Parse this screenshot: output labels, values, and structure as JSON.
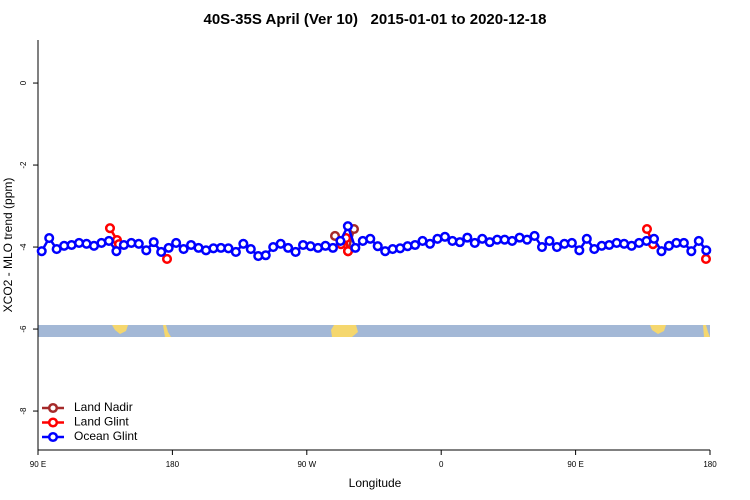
{
  "chart_data": {
    "type": "line",
    "title": "40S-35S April (Ver 10)   2015-01-01 to 2020-12-18",
    "x_label": "Longitude",
    "y_label": "XCO2 - MLO trend (ppm)",
    "xlim": [
      90,
      540
    ],
    "ylim": [
      -8.95,
      1.05
    ],
    "xticks": [
      {
        "value": 90,
        "label": "90 E"
      },
      {
        "value": 180,
        "label": "180"
      },
      {
        "value": 270,
        "label": "90 W"
      },
      {
        "value": 360,
        "label": "0"
      },
      {
        "value": 450,
        "label": "90 E"
      },
      {
        "value": 540,
        "label": "180"
      }
    ],
    "yticks": [
      0,
      -2,
      -4,
      -6,
      -8
    ],
    "legend": "bottom-left",
    "series": [
      {
        "name": "Land Nadir",
        "color": "#a52a2a",
        "x": [
          288.9,
          297.6,
          301.6
        ],
        "values": [
          -3.73,
          -4.1,
          -3.56
        ]
      },
      {
        "name": "Land Glint",
        "color": "#ff0000",
        "x": [
          138.2,
          142.9,
          144.2,
          null,
          176.4,
          null,
          292.9,
          296.3,
          297.6,
          null,
          497.8,
          501.8,
          null,
          537.3
        ],
        "values": [
          -3.54,
          -3.83,
          -3.93,
          null,
          -4.29,
          null,
          -3.93,
          -3.78,
          -4.1,
          null,
          -3.56,
          -3.93,
          null,
          -4.29
        ]
      },
      {
        "name": "Ocean Glint",
        "color": "#0000ff",
        "x": [
          92.5,
          97.5,
          102.5,
          107.5,
          112.5,
          117.5,
          122.5,
          127.5,
          132.5,
          137.5,
          142.5,
          147.5,
          152.5,
          157.5,
          162.5,
          167.5,
          172.5,
          177.5,
          182.5,
          187.5,
          192.5,
          197.5,
          202.5,
          207.5,
          212.5,
          217.5,
          222.5,
          227.5,
          232.5,
          237.5,
          242.5,
          247.5,
          252.5,
          257.5,
          262.5,
          267.5,
          272.5,
          277.5,
          282.5,
          287.5,
          292.5,
          297.5,
          302.5,
          307.5,
          312.5,
          317.5,
          322.5,
          327.5,
          332.5,
          337.5,
          342.5,
          347.5,
          352.5,
          357.5,
          362.5,
          367.5,
          372.5,
          377.5,
          382.5,
          387.5,
          392.5,
          397.5,
          402.5,
          407.5,
          412.5,
          417.5,
          422.5,
          427.5,
          432.5,
          437.5,
          442.5,
          447.5,
          452.5,
          457.5,
          462.5,
          467.5,
          472.5,
          477.5,
          482.5,
          487.5,
          492.5,
          497.5,
          502.5,
          507.5,
          512.5,
          517.5,
          522.5,
          527.5,
          532.5,
          537.5
        ],
        "values": [
          -4.1,
          -3.78,
          -4.05,
          -3.97,
          -3.95,
          -3.9,
          -3.92,
          -3.97,
          -3.9,
          -3.85,
          -4.1,
          -3.95,
          -3.9,
          -3.92,
          -4.08,
          -3.88,
          -4.12,
          -4.02,
          -3.9,
          -4.05,
          -3.95,
          -4.02,
          -4.08,
          -4.03,
          -4.02,
          -4.03,
          -4.12,
          -3.92,
          -4.05,
          -4.22,
          -4.2,
          -4.0,
          -3.92,
          -4.02,
          -4.12,
          -3.95,
          -3.98,
          -4.02,
          -3.97,
          -4.02,
          -3.85,
          -3.49,
          -4.02,
          -3.85,
          -3.8,
          -3.98,
          -4.1,
          -4.05,
          -4.03,
          -3.98,
          -3.95,
          -3.85,
          -3.92,
          -3.8,
          -3.75,
          -3.85,
          -3.88,
          -3.77,
          -3.9,
          -3.8,
          -3.88,
          -3.82,
          -3.82,
          -3.85,
          -3.77,
          -3.82,
          -3.73,
          -4.0,
          -3.85,
          -4.0,
          -3.92,
          -3.9,
          -4.08,
          -3.8,
          -4.05,
          -3.97,
          -3.95,
          -3.9,
          -3.92,
          -3.97,
          -3.9,
          -3.85,
          -3.8,
          -4.1,
          -3.97,
          -3.9,
          -3.9,
          -4.1,
          -3.85,
          -4.08
        ]
      }
    ]
  }
}
